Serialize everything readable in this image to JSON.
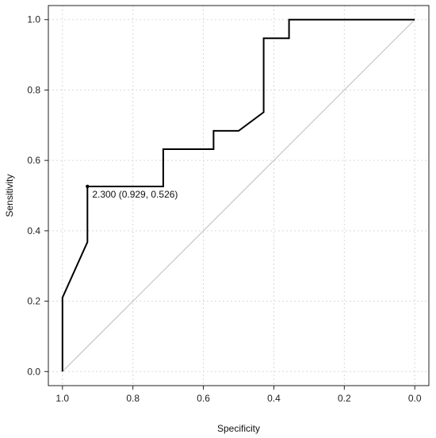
{
  "chart_data": {
    "type": "line",
    "xlabel": "Specificity",
    "ylabel": "Sensitivity",
    "x_reversed": true,
    "xlim": [
      1.0,
      0.0
    ],
    "ylim": [
      0.0,
      1.0
    ],
    "xticks": [
      1.0,
      0.8,
      0.6,
      0.4,
      0.2,
      0.0
    ],
    "xtick_labels": [
      "1.0",
      "0.8",
      "0.6",
      "0.4",
      "0.2",
      "0.0"
    ],
    "yticks": [
      0.0,
      0.2,
      0.4,
      0.6,
      0.8,
      1.0
    ],
    "ytick_labels": [
      "0.0",
      "0.2",
      "0.4",
      "0.6",
      "0.8",
      "1.0"
    ],
    "grid": true,
    "series": [
      {
        "x": [
          1.0,
          1.0,
          0.929,
          0.929,
          0.714,
          0.714,
          0.571,
          0.571,
          0.5,
          0.429,
          0.429,
          0.357,
          0.357,
          0.0
        ],
        "y": [
          0.0,
          0.21,
          0.368,
          0.526,
          0.526,
          0.632,
          0.632,
          0.684,
          0.684,
          0.737,
          0.947,
          0.947,
          1.0,
          1.0
        ],
        "color": "#000000"
      }
    ],
    "reference_line": {
      "x": [
        1.0,
        0.0
      ],
      "y": [
        0.0,
        1.0
      ],
      "color": "#bbbbbb"
    },
    "highlight_point": {
      "x": 0.929,
      "y": 0.526,
      "label": "2.300 (0.929, 0.526)"
    }
  }
}
